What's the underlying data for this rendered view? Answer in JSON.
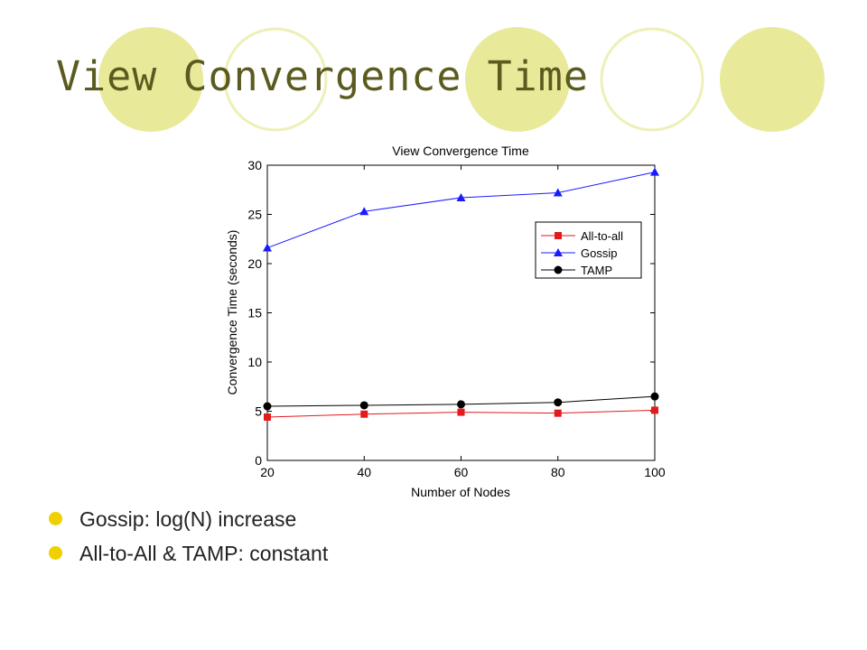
{
  "slide": {
    "title": "View Convergence Time",
    "accent_color": "#e8ea9a",
    "bullet_color": "#f0d000",
    "bullets": [
      "Gossip: log(N) increase",
      "All-to-All & TAMP: constant"
    ]
  },
  "chart_data": {
    "type": "line",
    "title": "View Convergence Time",
    "xlabel": "Number of Nodes",
    "ylabel": "Convergence Time (seconds)",
    "x": [
      20,
      40,
      60,
      80,
      100
    ],
    "xlim": [
      20,
      100
    ],
    "ylim": [
      0,
      30
    ],
    "xticks": [
      20,
      40,
      60,
      80,
      100
    ],
    "yticks": [
      0,
      5,
      10,
      15,
      20,
      25,
      30
    ],
    "grid": false,
    "legend_position": "upper-right",
    "series": [
      {
        "name": "All-to-all",
        "color": "#e31a1c",
        "marker": "square",
        "values": [
          4.4,
          4.7,
          4.9,
          4.8,
          5.1
        ]
      },
      {
        "name": "Gossip",
        "color": "#1a1aff",
        "marker": "triangle",
        "values": [
          21.6,
          25.3,
          26.7,
          27.2,
          29.3
        ]
      },
      {
        "name": "TAMP",
        "color": "#000000",
        "marker": "circle",
        "values": [
          5.5,
          5.6,
          5.7,
          5.9,
          6.5
        ]
      }
    ]
  }
}
